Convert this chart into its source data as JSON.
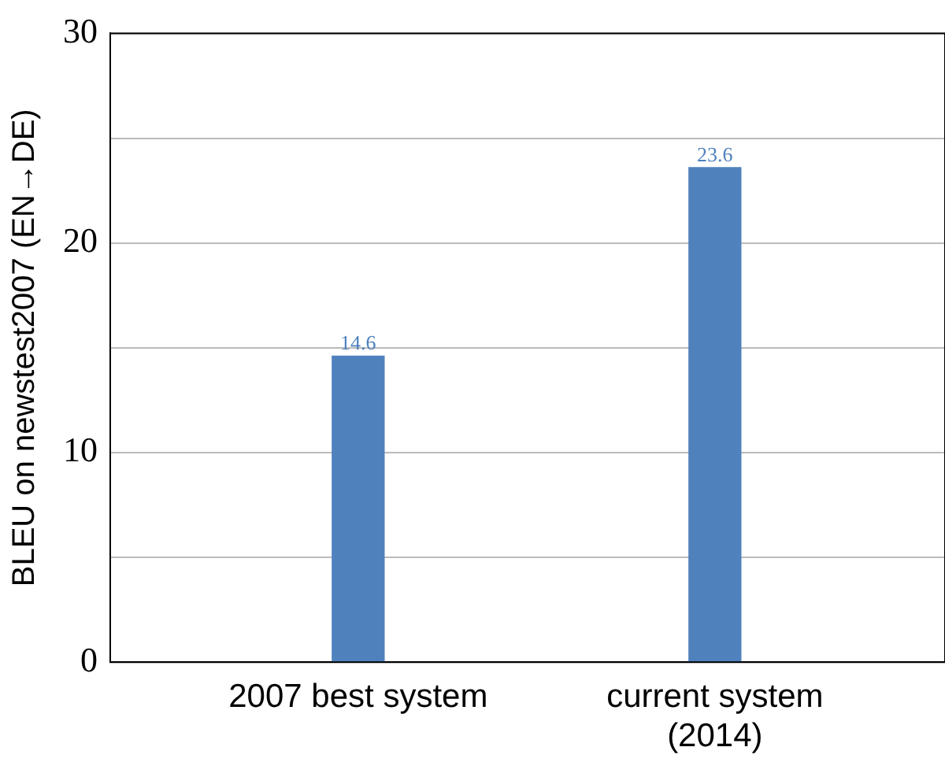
{
  "chart_data": {
    "type": "bar",
    "ylabel": "BLEU on newstest2007 (EN→DE)",
    "categories": [
      "2007 best system",
      "current system (2014)"
    ],
    "values": [
      14.6,
      23.6
    ],
    "color": "#4f81bd",
    "ylim": [
      0,
      30
    ],
    "yticks": [
      0,
      {
        "value": 5,
        "label": null
      },
      10,
      {
        "value": 15,
        "label": null
      },
      20,
      {
        "value": 25,
        "label": null
      },
      30
    ],
    "grid": "y",
    "data_labels": true
  }
}
